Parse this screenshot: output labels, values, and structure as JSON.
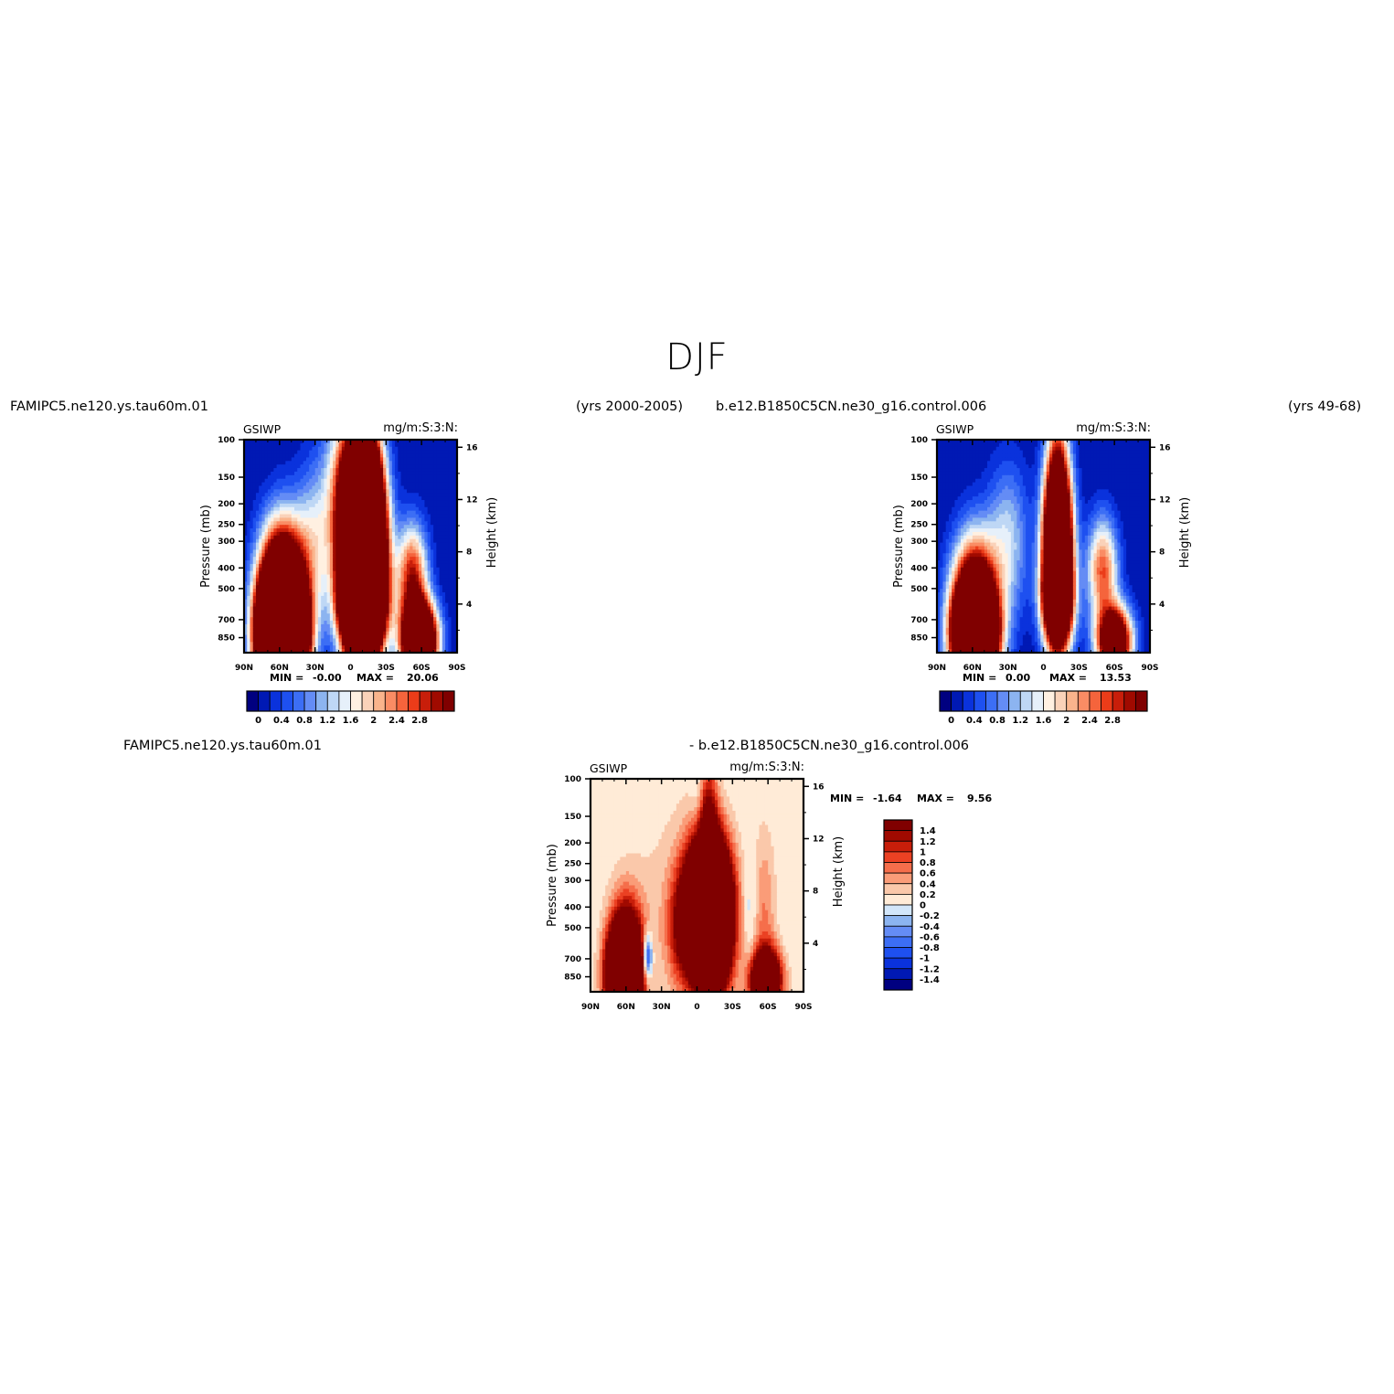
{
  "page": {
    "title": "DJF",
    "top_left_case": "FAMIPC5.ne120.ys.tau60m.01",
    "top_left_years": "(yrs 2000-2005)",
    "top_right_case": "b.e12.B1850C5CN.ne30_g16.control.006",
    "top_right_years": "(yrs 49-68)",
    "bottom_left_case": "FAMIPC5.ne120.ys.tau60m.01",
    "bottom_right_case": "- b.e12.B1850C5CN.ne30_g16.control.006"
  },
  "colors": {
    "abs_scale": [
      "#000080",
      "#0019b4",
      "#0a32dc",
      "#1e50f0",
      "#3c6ef5",
      "#648cf5",
      "#8cb4f0",
      "#bed7f5",
      "#e6f0fa",
      "#fff0e1",
      "#fad2b9",
      "#fab48c",
      "#fa8c64",
      "#f5643c",
      "#eb3c19",
      "#c81e0a",
      "#a00a00",
      "#800000"
    ],
    "diff_scale": [
      "#000080",
      "#0019b4",
      "#0a32dc",
      "#1e50f0",
      "#3c6ef5",
      "#648cf5",
      "#8cb4f0",
      "#d2e6fa",
      "#ffebd7",
      "#fac8aa",
      "#fa9c78",
      "#f56e4b",
      "#eb4123",
      "#c81e0a",
      "#a00a00",
      "#800000"
    ]
  },
  "chart_data": [
    {
      "type": "heatmap",
      "panel": "model",
      "left_label": "GSIWP",
      "right_label": "mg/m:S:3:N:",
      "min_label": "MIN =",
      "min_value": "-0.00",
      "max_label": "MAX =",
      "max_value": "20.06",
      "x_ticks": [
        "90N",
        "60N",
        "30N",
        "0",
        "30S",
        "60S",
        "90S"
      ],
      "y_ticks": [
        "100",
        "150",
        "200",
        "250",
        "300",
        "400",
        "500",
        "700",
        "850"
      ],
      "ylabel": "Pressure (mb)",
      "y2_ticks": [
        "16",
        "12",
        "8",
        "4"
      ],
      "y2label": "Height (km)",
      "xlim": [
        90,
        -90
      ],
      "ylim": [
        1000,
        100
      ],
      "y_scale": "log",
      "levels": [
        0,
        0.2,
        0.4,
        0.6,
        0.8,
        1.0,
        1.2,
        1.4,
        1.6,
        1.8,
        2.0,
        2.2,
        2.4,
        2.6,
        2.8,
        3.0,
        3.2
      ],
      "colorbar_labels": [
        "0",
        "0.4",
        "0.8",
        "1.2",
        "1.6",
        "2",
        "2.4",
        "2.8"
      ],
      "features": [
        {
          "lat": 58,
          "p": 620,
          "dlat": 13,
          "logp_sigma": 0.24,
          "amp": 9.0
        },
        {
          "lat": 58,
          "p": 860,
          "dlat": 12,
          "logp_sigma": 0.16,
          "amp": 14.0
        },
        {
          "lat": -10,
          "p": 340,
          "dlat": 11,
          "logp_sigma": 0.32,
          "amp": 20.0
        },
        {
          "lat": -10,
          "p": 560,
          "dlat": 12,
          "logp_sigma": 0.12,
          "amp": 5.0
        },
        {
          "lat": -10,
          "p": 130,
          "dlat": 6,
          "logp_sigma": 0.22,
          "amp": 2.5
        },
        {
          "lat": 10,
          "p": 150,
          "dlat": 10,
          "logp_sigma": 0.25,
          "amp": 1.2
        },
        {
          "lat": -52,
          "p": 440,
          "dlat": 9,
          "logp_sigma": 0.17,
          "amp": 3.0
        },
        {
          "lat": -58,
          "p": 880,
          "dlat": 10,
          "logp_sigma": 0.12,
          "amp": 8.0
        },
        {
          "lat": 30,
          "p": 300,
          "dlat": 12,
          "logp_sigma": 0.25,
          "amp": 1.4
        }
      ]
    },
    {
      "type": "heatmap",
      "panel": "control",
      "left_label": "GSIWP",
      "right_label": "mg/m:S:3:N:",
      "min_label": "MIN =",
      "min_value": "0.00",
      "max_label": "MAX =",
      "max_value": "13.53",
      "x_ticks": [
        "90N",
        "60N",
        "30N",
        "0",
        "30S",
        "60S",
        "90S"
      ],
      "y_ticks": [
        "100",
        "150",
        "200",
        "250",
        "300",
        "400",
        "500",
        "700",
        "850"
      ],
      "ylabel": "Pressure (mb)",
      "y2_ticks": [
        "16",
        "12",
        "8",
        "4"
      ],
      "y2label": "Height (km)",
      "xlim": [
        90,
        -90
      ],
      "ylim": [
        1000,
        100
      ],
      "y_scale": "log",
      "levels": [
        0,
        0.2,
        0.4,
        0.6,
        0.8,
        1.0,
        1.2,
        1.4,
        1.6,
        1.8,
        2.0,
        2.2,
        2.4,
        2.6,
        2.8,
        3.0,
        3.2
      ],
      "colorbar_labels": [
        "0",
        "0.4",
        "0.8",
        "1.2",
        "1.6",
        "2",
        "2.4",
        "2.8"
      ],
      "features": [
        {
          "lat": 58,
          "p": 600,
          "dlat": 13,
          "logp_sigma": 0.22,
          "amp": 5.0
        },
        {
          "lat": 58,
          "p": 860,
          "dlat": 12,
          "logp_sigma": 0.15,
          "amp": 9.0
        },
        {
          "lat": -12,
          "p": 360,
          "dlat": 8,
          "logp_sigma": 0.28,
          "amp": 9.0
        },
        {
          "lat": -12,
          "p": 570,
          "dlat": 9,
          "logp_sigma": 0.12,
          "amp": 3.0
        },
        {
          "lat": -12,
          "p": 150,
          "dlat": 7,
          "logp_sigma": 0.3,
          "amp": 1.6
        },
        {
          "lat": -50,
          "p": 410,
          "dlat": 9,
          "logp_sigma": 0.17,
          "amp": 2.6
        },
        {
          "lat": -60,
          "p": 890,
          "dlat": 10,
          "logp_sigma": 0.11,
          "amp": 5.5
        },
        {
          "lat": 30,
          "p": 300,
          "dlat": 12,
          "logp_sigma": 0.25,
          "amp": 1.3
        }
      ]
    },
    {
      "type": "heatmap",
      "panel": "difference",
      "left_label": "GSIWP",
      "right_label": "mg/m:S:3:N:",
      "min_label": "MIN =",
      "min_value": "-1.64",
      "max_label": "MAX =",
      "max_value": "9.56",
      "x_ticks": [
        "90N",
        "60N",
        "30N",
        "0",
        "30S",
        "60S",
        "90S"
      ],
      "y_ticks": [
        "100",
        "150",
        "200",
        "250",
        "300",
        "400",
        "500",
        "700",
        "850"
      ],
      "ylabel": "Pressure (mb)",
      "y2_ticks": [
        "16",
        "12",
        "8",
        "4"
      ],
      "y2label": "Height (km)",
      "xlim": [
        90,
        -90
      ],
      "ylim": [
        1000,
        100
      ],
      "y_scale": "log",
      "levels": [
        -1.4,
        -1.2,
        -1.0,
        -0.8,
        -0.6,
        -0.4,
        -0.2,
        0,
        0.2,
        0.4,
        0.6,
        0.8,
        1.0,
        1.2,
        1.4
      ],
      "colorbar_labels": [
        "1.4",
        "1.2",
        "1",
        "0.8",
        "0.6",
        "0.4",
        "0.2",
        "0",
        "-0.2",
        "-0.4",
        "-0.6",
        "-0.8",
        "-1",
        "-1.2",
        "-1.4"
      ],
      "features": [
        {
          "lat": -10,
          "p": 440,
          "dlat": 12,
          "logp_sigma": 0.23,
          "amp": 8.0
        },
        {
          "lat": -10,
          "p": 250,
          "dlat": 5,
          "logp_sigma": 0.35,
          "amp": 1.5
        },
        {
          "lat": 60,
          "p": 720,
          "dlat": 10,
          "logp_sigma": 0.2,
          "amp": 2.5
        },
        {
          "lat": 62,
          "p": 860,
          "dlat": 9,
          "logp_sigma": 0.14,
          "amp": 5.0
        },
        {
          "lat": -58,
          "p": 890,
          "dlat": 9,
          "logp_sigma": 0.1,
          "amp": 3.5
        },
        {
          "lat": -57,
          "p": 450,
          "dlat": 7,
          "logp_sigma": 0.3,
          "amp": 0.6
        },
        {
          "lat": 42,
          "p": 690,
          "dlat": 3,
          "logp_sigma": 0.08,
          "amp": -1.64
        },
        {
          "lat": 0,
          "p": 840,
          "dlat": 18,
          "logp_sigma": 0.15,
          "amp": -0.35
        },
        {
          "lat": -45,
          "p": 430,
          "dlat": 4,
          "logp_sigma": 0.2,
          "amp": -0.3
        },
        {
          "lat": 15,
          "p": 520,
          "dlat": 8,
          "logp_sigma": 0.2,
          "amp": 0.9
        },
        {
          "lat": 0,
          "p": 130,
          "dlat": 4,
          "logp_sigma": 0.2,
          "amp": -0.25
        },
        {
          "lat": 20,
          "p": 500,
          "dlat": 30,
          "logp_sigma": 0.45,
          "amp": 0.3
        }
      ]
    }
  ]
}
